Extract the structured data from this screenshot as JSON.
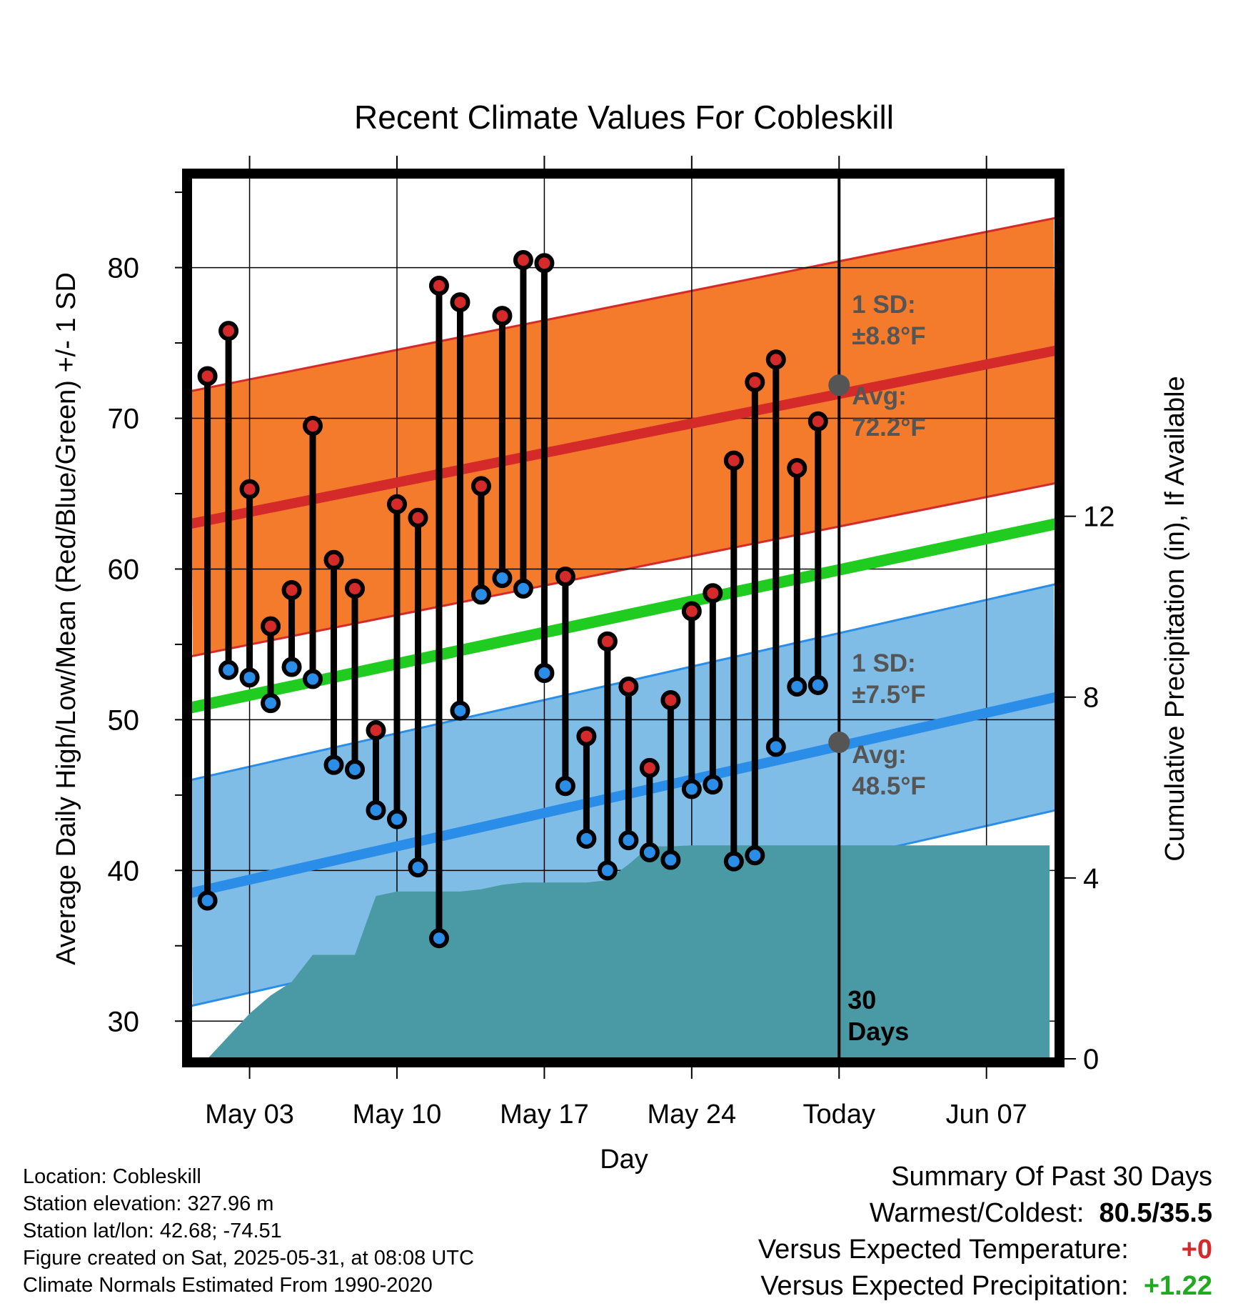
{
  "chart_data": {
    "type": "line",
    "title": "Recent Climate Values For Cobleskill",
    "xlabel": "Day",
    "ylabel": "Average Daily High/Low/Mean (Red/Blue/Green) +/- 1 SD",
    "y2label": "Cumulative Precipitation (in), If Available",
    "ylim": [
      27.5,
      86
    ],
    "y2lim": [
      0,
      19.5
    ],
    "x_tick_labels": [
      "May 03",
      "May 10",
      "May 17",
      "May 24",
      "Today",
      "Jun 07"
    ],
    "x_tick_days": [
      3,
      10,
      17,
      24,
      31,
      38
    ],
    "y_ticks": [
      30,
      40,
      50,
      60,
      70,
      80
    ],
    "y2_ticks": [
      0,
      4,
      8,
      12
    ],
    "xlim": [
      0.2,
      41.3
    ],
    "today_day": 31,
    "today_label": "30\nDays",
    "high_normal": {
      "start": 63.0,
      "end": 74.5,
      "sd": 8.8
    },
    "low_normal": {
      "start": 38.5,
      "end": 51.5,
      "sd": 7.5
    },
    "mean_normal": {
      "start": 50.8,
      "end": 63.0
    },
    "high_annotation": {
      "sd_label": "1 SD:",
      "sd_value": "±8.8°F",
      "avg_label": "Avg:",
      "avg_value": "72.2°F",
      "avg": 72.2
    },
    "low_annotation": {
      "sd_label": "1 SD:",
      "sd_value": "±7.5°F",
      "avg_label": "Avg:",
      "avg_value": "48.5°F",
      "avg": 48.5
    },
    "days": [
      1,
      2,
      3,
      4,
      5,
      6,
      7,
      8,
      9,
      10,
      11,
      12,
      13,
      14,
      15,
      16,
      17,
      18,
      19,
      20,
      21,
      22,
      23,
      24,
      25,
      26,
      27,
      28,
      29,
      30
    ],
    "series": [
      {
        "name": "High",
        "color": "#d42a2a",
        "values": [
          72.8,
          75.8,
          65.3,
          56.2,
          58.6,
          69.5,
          60.6,
          58.7,
          49.3,
          64.3,
          63.4,
          78.8,
          77.7,
          65.5,
          76.8,
          80.5,
          80.3,
          59.5,
          48.9,
          55.2,
          52.2,
          46.8,
          51.3,
          57.2,
          58.4,
          67.2,
          72.4,
          73.9,
          66.7,
          69.8
        ]
      },
      {
        "name": "Low",
        "color": "#2a8ee8",
        "values": [
          38.0,
          53.3,
          52.8,
          51.1,
          53.5,
          52.7,
          47.0,
          46.7,
          44.0,
          43.4,
          40.2,
          35.5,
          50.6,
          58.3,
          59.4,
          58.7,
          53.1,
          45.6,
          42.1,
          40.0,
          42.0,
          41.2,
          40.7,
          45.4,
          45.7,
          40.6,
          41.0,
          48.2,
          52.2,
          52.3
        ]
      }
    ],
    "precipitation": {
      "days": [
        0,
        1,
        2,
        3,
        4,
        5,
        6,
        7,
        8,
        9,
        10,
        11,
        12,
        13,
        14,
        15,
        16,
        17,
        18,
        19,
        20,
        21,
        22,
        23,
        24,
        25,
        26,
        27,
        28,
        29,
        30,
        31,
        41
      ],
      "values": [
        0.0,
        0.0,
        0.5,
        1.0,
        1.4,
        1.7,
        2.3,
        2.3,
        2.3,
        3.6,
        3.7,
        3.7,
        3.7,
        3.7,
        3.75,
        3.85,
        3.9,
        3.9,
        3.9,
        3.9,
        3.95,
        4.3,
        4.7,
        4.7,
        4.72,
        4.72,
        4.72,
        4.72,
        4.72,
        4.72,
        4.72,
        4.72,
        4.72
      ]
    },
    "colors": {
      "high_band": "#f47a2c",
      "high_line": "#d42a2a",
      "low_band": "#80bde6",
      "low_line": "#2a8ee8",
      "mean_line": "#1fcc1f",
      "precip": "#4a9aa5",
      "avg_marker": "#555555",
      "annotation": "#555555"
    }
  },
  "footer": {
    "location": "Location: Cobleskill",
    "elevation": "Station elevation: 327.96 m",
    "latlon": "Station lat/lon: 42.68; -74.51",
    "created": "Figure created on Sat, 2025-05-31, at 08:08 UTC",
    "normals": "Climate Normals Estimated From 1990-2020"
  },
  "summary": {
    "title": "Summary Of Past 30 Days",
    "warm_cold_label": "Warmest/Coldest:",
    "warm_cold_value": "80.5/35.5",
    "temp_label": "Versus Expected Temperature:",
    "temp_value": "+0",
    "precip_label": "Versus Expected Precipitation:",
    "precip_value": "+1.22"
  }
}
